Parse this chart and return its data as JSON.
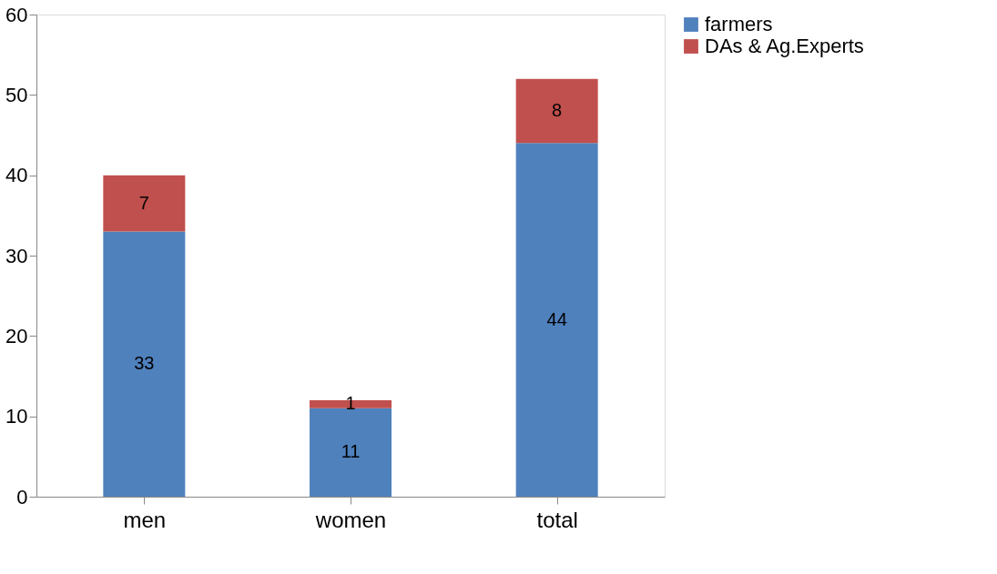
{
  "chart_data": {
    "type": "bar",
    "stacked": true,
    "categories": [
      "men",
      "women",
      "total"
    ],
    "series": [
      {
        "name": "farmers",
        "color": "#4f81bd",
        "values": [
          33,
          11,
          44
        ]
      },
      {
        "name": "DAs & Ag.Experts",
        "color": "#c0504d",
        "values": [
          7,
          1,
          8
        ]
      }
    ],
    "ylim": [
      0,
      60
    ],
    "yticks": [
      0,
      10,
      20,
      30,
      40,
      50,
      60
    ],
    "data_labels": true,
    "legend": "right",
    "grid": false
  }
}
